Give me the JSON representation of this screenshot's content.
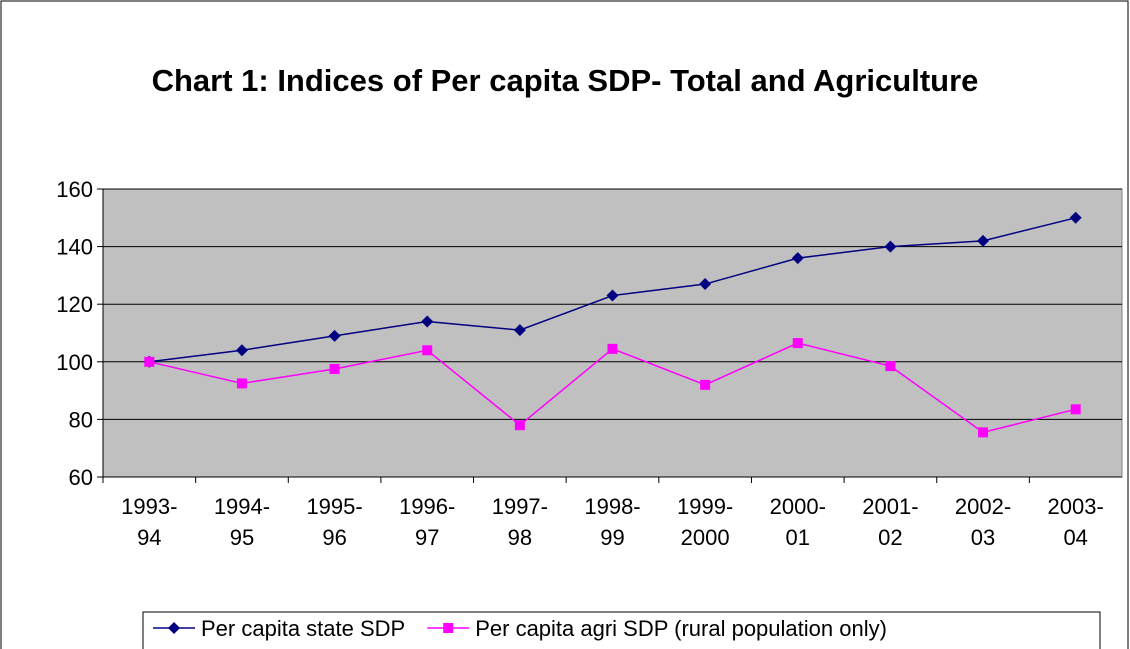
{
  "chart_data": {
    "type": "line",
    "title": "Chart 1: Indices of Per capita SDP- Total and Agriculture",
    "categories": [
      "1993-94",
      "1994-95",
      "1995-96",
      "1996-97",
      "1997-98",
      "1998-99",
      "1999-2000",
      "2000-01",
      "2001-02",
      "2002-03",
      "2003-04"
    ],
    "series": [
      {
        "name": "Per capita state SDP",
        "color": "#000080",
        "marker": "diamond",
        "values": [
          100,
          104,
          109,
          114,
          111,
          123,
          127,
          136,
          140,
          142,
          150
        ]
      },
      {
        "name": "Per capita agri SDP (rural population only)",
        "color": "#ff00ff",
        "marker": "square",
        "values": [
          100,
          92.5,
          97.5,
          104,
          78,
          104.5,
          92,
          106.5,
          98.5,
          75.5,
          83.5
        ]
      }
    ],
    "ylim": [
      60,
      160
    ],
    "yticks": [
      60,
      80,
      100,
      120,
      140,
      160
    ],
    "grid": true,
    "legend": "bottom",
    "plot_background": "#c0c0c0"
  }
}
